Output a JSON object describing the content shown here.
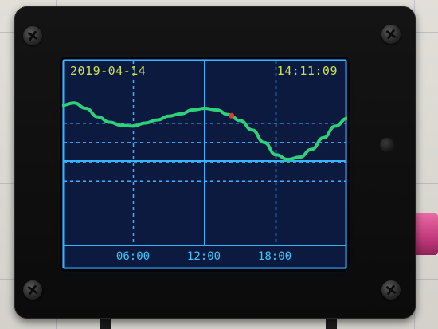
{
  "display": {
    "date": "2019-04-14",
    "time": "14:11:09",
    "x_ticks": [
      "06:00",
      "12:00",
      "18:00"
    ]
  },
  "colors": {
    "screen_background": "#0c1a3f",
    "grid_line": "#36b4ff",
    "tide_curve": "#2ed17a",
    "current_marker": "#e03a2a",
    "date_time_text": "#c9e24a",
    "tick_text": "#39c9ff",
    "usb_plug": "#d24b8d"
  },
  "chart_data": {
    "type": "line",
    "x_unit": "hour of day",
    "x_range": [
      0,
      24
    ],
    "y_range": [
      -1,
      1
    ],
    "current_hour": 14.19,
    "series": [
      {
        "points": [
          [
            0,
            0.72
          ],
          [
            1,
            0.75
          ],
          [
            2,
            0.68
          ],
          [
            3,
            0.57
          ],
          [
            4,
            0.5
          ],
          [
            5,
            0.46
          ],
          [
            6,
            0.45
          ],
          [
            7,
            0.49
          ],
          [
            8,
            0.53
          ],
          [
            9,
            0.58
          ],
          [
            10,
            0.61
          ],
          [
            11,
            0.66
          ],
          [
            12,
            0.68
          ],
          [
            13,
            0.66
          ],
          [
            14,
            0.6
          ],
          [
            15,
            0.52
          ],
          [
            16,
            0.4
          ],
          [
            17,
            0.24
          ],
          [
            18,
            0.08
          ],
          [
            19,
            0.02
          ],
          [
            20,
            0.05
          ],
          [
            21,
            0.15
          ],
          [
            22,
            0.3
          ],
          [
            23,
            0.45
          ],
          [
            24,
            0.55
          ]
        ]
      }
    ]
  }
}
